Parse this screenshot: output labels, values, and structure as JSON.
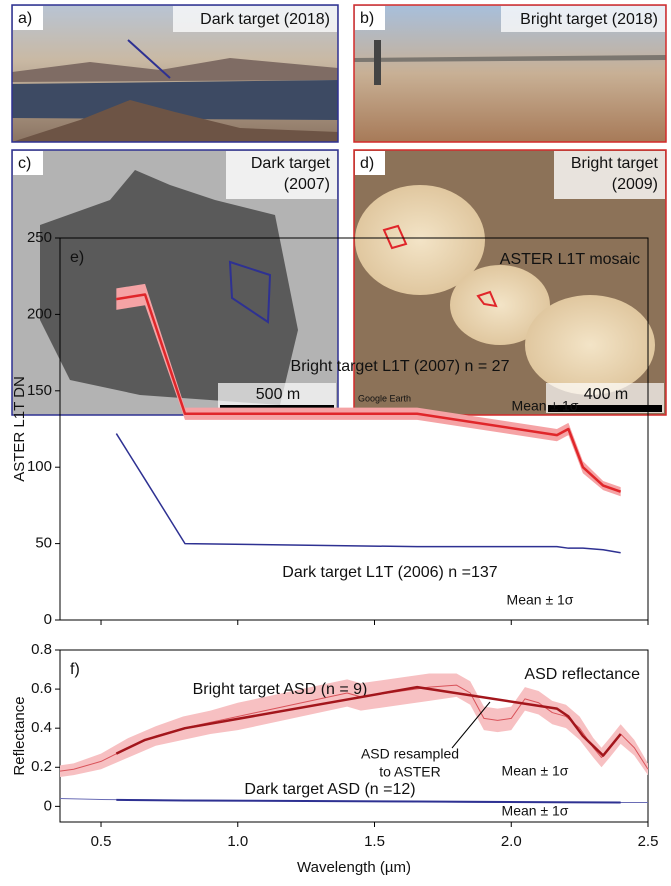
{
  "panels": [
    {
      "label": "a)",
      "title": "Dark target (2018)"
    },
    {
      "label": "b)",
      "title": "Bright target (2018)"
    },
    {
      "label": "c)",
      "title_lines": [
        "Dark target",
        "(2007)"
      ],
      "scale_bar": "500 m"
    },
    {
      "label": "d)",
      "title_lines": [
        "Bright target",
        "(2009)"
      ],
      "scale_bar": "400 m",
      "watermark": "Google Earth"
    }
  ],
  "chart_data": [
    {
      "type": "line",
      "ylabel": "ASTER L1T DN",
      "xlim": [
        0.35,
        2.5
      ],
      "ylim": [
        0,
        250
      ],
      "yticks": [
        0,
        50,
        100,
        150,
        200,
        250
      ],
      "annotations": [
        "e)",
        "ASTER L1T mosaic",
        "Mean ± 1σ",
        "Mean ± 1σ"
      ],
      "series": [
        {
          "name": "Bright target L1T (2007) n = 27",
          "color": "#e0262a",
          "band_color": "#f5a3a5",
          "width": 2.5,
          "x": [
            0.556,
            0.661,
            0.807,
            1.656,
            2.167,
            2.209,
            2.262,
            2.336,
            2.4
          ],
          "values": [
            210,
            213,
            135,
            135,
            121,
            125,
            100,
            88,
            84
          ],
          "errors": [
            7,
            7,
            4,
            4,
            4,
            4,
            4,
            3,
            3
          ]
        },
        {
          "name": "Dark target L1T (2006) n =137",
          "color": "#2e3192",
          "width": 1.5,
          "x": [
            0.556,
            0.661,
            0.807,
            1.656,
            2.167,
            2.209,
            2.262,
            2.336,
            2.4
          ],
          "values": [
            122,
            92,
            50,
            48,
            48,
            47,
            47,
            46,
            44
          ]
        }
      ]
    },
    {
      "type": "line",
      "xlabel": "Wavelength (µm)",
      "ylabel": "Reflectance",
      "xlim": [
        0.35,
        2.5
      ],
      "ylim": [
        -0.08,
        0.8
      ],
      "xticks": [
        0.5,
        {
          "value": 1,
          "label": "1.0"
        },
        1.5,
        {
          "value": 2,
          "label": "2.0"
        },
        2.5
      ],
      "yticks": [
        0,
        0.2,
        0.4,
        0.6,
        0.8
      ],
      "annotations": [
        "f)",
        "ASD reflectance",
        "Mean ± 1σ",
        "Mean ± 1σ"
      ],
      "leader_label": [
        "ASD resampled",
        "to ASTER"
      ],
      "series": [
        {
          "name": "Bright target ASD (n = 9)",
          "color": "#d9535a",
          "band_color": "#f7c0c2",
          "width": 1,
          "x": [
            0.35,
            0.4,
            0.5,
            0.6,
            0.7,
            0.8,
            0.9,
            1.0,
            1.1,
            1.2,
            1.3,
            1.4,
            1.45,
            1.5,
            1.6,
            1.7,
            1.8,
            1.85,
            1.9,
            1.95,
            2.0,
            2.05,
            2.1,
            2.15,
            2.2,
            2.25,
            2.3,
            2.33,
            2.36,
            2.4,
            2.45,
            2.5
          ],
          "values": [
            0.18,
            0.19,
            0.23,
            0.3,
            0.36,
            0.4,
            0.43,
            0.46,
            0.49,
            0.52,
            0.55,
            0.58,
            0.56,
            0.57,
            0.59,
            0.61,
            0.62,
            0.58,
            0.45,
            0.44,
            0.45,
            0.55,
            0.53,
            0.48,
            0.46,
            0.4,
            0.3,
            0.25,
            0.3,
            0.37,
            0.3,
            0.19
          ],
          "errors": [
            0.03,
            0.03,
            0.04,
            0.05,
            0.05,
            0.06,
            0.06,
            0.07,
            0.07,
            0.07,
            0.07,
            0.07,
            0.07,
            0.07,
            0.07,
            0.07,
            0.06,
            0.06,
            0.06,
            0.06,
            0.06,
            0.06,
            0.06,
            0.06,
            0.06,
            0.06,
            0.05,
            0.05,
            0.05,
            0.05,
            0.04,
            0.03
          ]
        },
        {
          "color": "#a3161c",
          "width": 2.5,
          "x": [
            0.556,
            0.661,
            0.807,
            1.656,
            2.167,
            2.209,
            2.262,
            2.336,
            2.4
          ],
          "values": [
            0.27,
            0.34,
            0.4,
            0.61,
            0.5,
            0.46,
            0.36,
            0.26,
            0.37
          ]
        },
        {
          "name": "Dark target ASD (n =12)",
          "color": "#6a6cb5",
          "width": 1,
          "x": [
            0.35,
            0.5,
            1.0,
            1.5,
            2.0,
            2.5
          ],
          "values": [
            0.04,
            0.035,
            0.03,
            0.025,
            0.02,
            0.02
          ]
        },
        {
          "color": "#2e3192",
          "width": 2,
          "x": [
            0.556,
            0.807,
            1.656,
            2.167,
            2.4
          ],
          "values": [
            0.033,
            0.03,
            0.025,
            0.021,
            0.02
          ]
        }
      ]
    }
  ]
}
